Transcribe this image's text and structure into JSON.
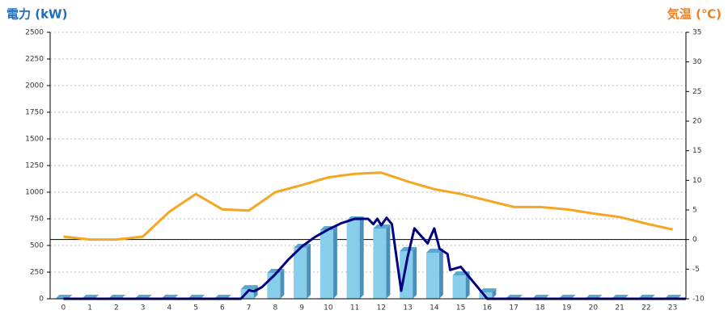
{
  "chart_data": {
    "type": "bar",
    "y_label": "電力 (kW)",
    "y2_label": "気温 (℃)",
    "categories": [
      "0",
      "1",
      "2",
      "3",
      "4",
      "5",
      "6",
      "7",
      "8",
      "9",
      "10",
      "11",
      "12",
      "13",
      "14",
      "15",
      "16",
      "17",
      "18",
      "19",
      "20",
      "21",
      "22",
      "23"
    ],
    "ylim": [
      0,
      2500
    ],
    "yticks": [
      0,
      250,
      500,
      750,
      1000,
      1250,
      1500,
      1750,
      2000,
      2250,
      2500
    ],
    "y2lim": [
      -10,
      35
    ],
    "y2ticks": [
      -10,
      -5,
      0,
      5,
      10,
      15,
      20,
      25,
      30,
      35
    ],
    "grid": true,
    "series": [
      {
        "type": "bar",
        "color": "#87ceeb",
        "values": [
          0,
          0,
          0,
          0,
          0,
          0,
          0,
          90,
          242,
          477,
          644,
          735,
          659,
          447,
          432,
          220,
          60,
          0,
          0,
          0,
          0,
          0,
          0,
          0
        ]
      },
      {
        "type": "line",
        "color": "#000080",
        "x": [
          0,
          6.7,
          7.0,
          7.2,
          7.5,
          8,
          8.5,
          9,
          9.5,
          10,
          10.5,
          11,
          11.5,
          11.7,
          11.85,
          12.0,
          12.2,
          12.4,
          12.75,
          13.0,
          13.25,
          13.5,
          13.75,
          14.0,
          14.2,
          14.5,
          14.6,
          15.0,
          15.5,
          15.8,
          16.0,
          23.5
        ],
        "values": [
          0,
          0,
          80,
          70,
          110,
          230,
          370,
          490,
          580,
          650,
          710,
          750,
          750,
          700,
          750,
          690,
          760,
          700,
          75,
          400,
          660,
          590,
          520,
          660,
          470,
          420,
          270,
          300,
          150,
          60,
          0,
          0
        ]
      },
      {
        "type": "line",
        "axis": "y2",
        "color": "#f5a623",
        "values": [
          0.5,
          0,
          0,
          0.5,
          4.7,
          7.7,
          5.1,
          4.9,
          8,
          9.2,
          10.5,
          11.1,
          11.3,
          9.8,
          8.5,
          7.7,
          6.6,
          5.5,
          5.5,
          5.1,
          4.4,
          3.8,
          2.7,
          1.7
        ]
      }
    ]
  }
}
